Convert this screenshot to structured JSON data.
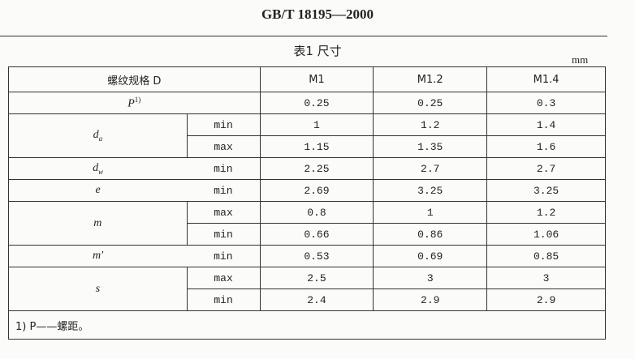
{
  "header": {
    "title": "GB/T 18195—2000"
  },
  "table": {
    "caption": "表1  尺寸",
    "unit": "mm",
    "columns": [
      "螺纹规格 D",
      "M1",
      "M1.2",
      "M1.4"
    ],
    "rows": [
      {
        "symbol": "P",
        "sup": "1)",
        "values": [
          "0.25",
          "0.25",
          "0.3"
        ]
      },
      {
        "symbol": "d",
        "sub": "a",
        "limits": [
          {
            "limit": "min",
            "values": [
              "1",
              "1.2",
              "1.4"
            ]
          },
          {
            "limit": "max",
            "values": [
              "1.15",
              "1.35",
              "1.6"
            ]
          }
        ]
      },
      {
        "symbol": "d",
        "sub": "w",
        "limits": [
          {
            "limit": "min",
            "values": [
              "2.25",
              "2.7",
              "2.7"
            ]
          }
        ]
      },
      {
        "symbol": "e",
        "limits": [
          {
            "limit": "min",
            "values": [
              "2.69",
              "3.25",
              "3.25"
            ]
          }
        ]
      },
      {
        "symbol": "m",
        "limits": [
          {
            "limit": "max",
            "values": [
              "0.8",
              "1",
              "1.2"
            ]
          },
          {
            "limit": "min",
            "values": [
              "0.66",
              "0.86",
              "1.06"
            ]
          }
        ]
      },
      {
        "symbol": "m′",
        "limits": [
          {
            "limit": "min",
            "values": [
              "0.53",
              "0.69",
              "0.85"
            ]
          }
        ]
      },
      {
        "symbol": "s",
        "limits": [
          {
            "limit": "max",
            "values": [
              "2.5",
              "3",
              "3"
            ]
          },
          {
            "limit": "min",
            "values": [
              "2.4",
              "2.9",
              "2.9"
            ]
          }
        ]
      }
    ],
    "footnote": "1) P——螺距。"
  }
}
